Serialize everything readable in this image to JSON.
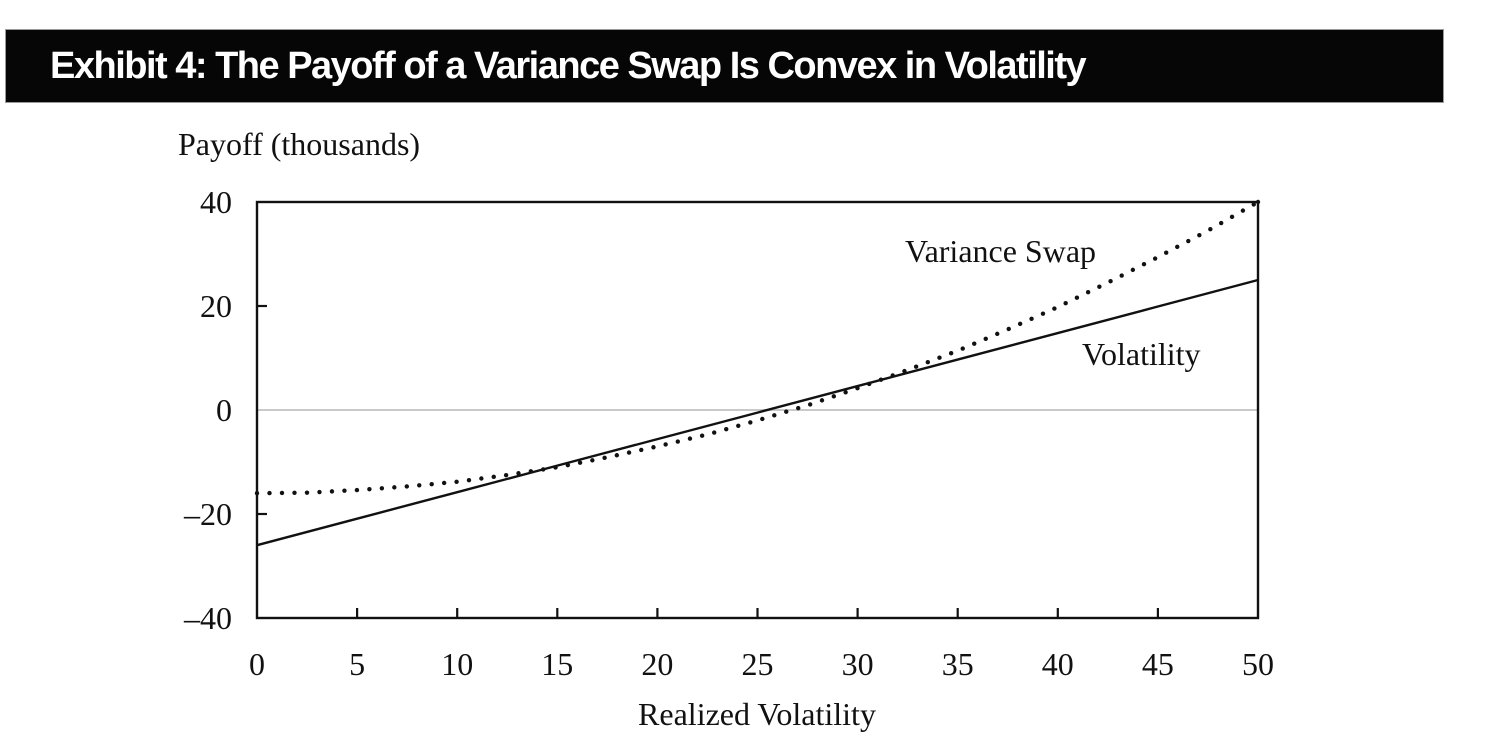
{
  "header": {
    "title": "Exhibit 4: The Payoff of a Variance Swap Is Convex in Volatility"
  },
  "chart_data": {
    "type": "line",
    "title": "Exhibit 4: The Payoff of a Variance Swap Is Convex in Volatility",
    "ylabel": "Payoff (thousands)",
    "xlabel": "Realized Volatility",
    "xlim": [
      0,
      50
    ],
    "ylim": [
      -40,
      40
    ],
    "grid": "horizontal zero line only",
    "gridline_y": 0,
    "legend_position": "labels beside lines inside plot",
    "x_ticks": [
      0,
      5,
      10,
      15,
      20,
      25,
      30,
      35,
      40,
      45,
      50
    ],
    "x_tick_labels": [
      "0",
      "5",
      "10",
      "15",
      "20",
      "25",
      "30",
      "35",
      "40",
      "45",
      "50"
    ],
    "x_inner_ticks": [
      5,
      10,
      15,
      20,
      25,
      30,
      35,
      40,
      45
    ],
    "y_ticks": [
      40,
      20,
      0,
      -20,
      -40
    ],
    "y_tick_labels": [
      "40",
      "20",
      "0",
      "–20",
      "–40"
    ],
    "y_inner_ticks": [
      20,
      -20
    ],
    "series": [
      {
        "name": "Variance Swap",
        "style": "dotted",
        "x": [
          0,
          2.5,
          5,
          7.5,
          10,
          12.5,
          15,
          17.5,
          20,
          22.5,
          25,
          27.5,
          30,
          32.5,
          35,
          37.5,
          40,
          42.5,
          45,
          47.5,
          50
        ],
        "y": [
          -16.0,
          -15.9,
          -15.4,
          -14.7,
          -13.8,
          -12.5,
          -11.0,
          -9.1,
          -7.0,
          -4.7,
          -2.0,
          0.9,
          4.2,
          7.7,
          11.4,
          15.5,
          19.8,
          24.5,
          29.4,
          34.5,
          40.0
        ]
      },
      {
        "name": "Volatility",
        "style": "solid",
        "x": [
          0,
          5,
          10,
          15,
          20,
          25,
          30,
          35,
          40,
          45,
          50
        ],
        "y": [
          -26.0,
          -20.9,
          -15.8,
          -10.7,
          -5.6,
          -0.5,
          4.6,
          9.7,
          14.8,
          19.9,
          25.0
        ]
      }
    ],
    "colors": {
      "line": "#111111",
      "zero_gridline": "#c9c9c9",
      "title_bar_bg": "#060606",
      "title_text": "#ffffff"
    }
  }
}
